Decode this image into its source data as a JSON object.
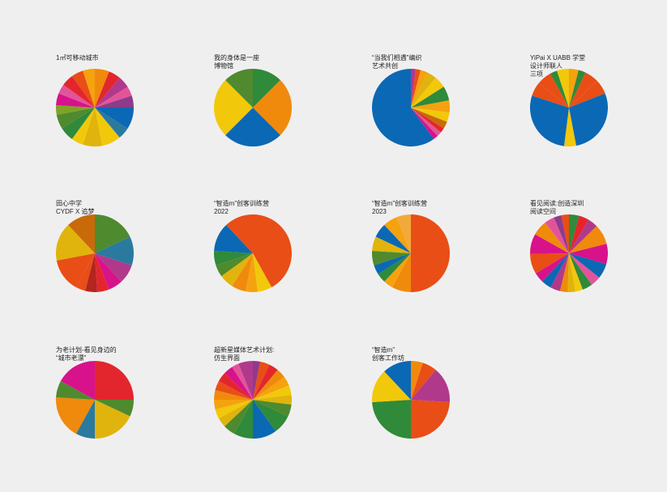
{
  "palette": {
    "red": "#e3262d",
    "orange_red": "#e84e16",
    "orange": "#f08a0c",
    "amber": "#f5a20f",
    "yellow": "#f2c80a",
    "mustard": "#e0b40c",
    "light_orange": "#f2a93b",
    "dark_orange": "#c86a0a",
    "blue": "#0b68b4",
    "teal": "#2a7aa0",
    "green": "#2f8a3a",
    "olive_green": "#4f8a2e",
    "lime": "#7ea325",
    "magenta": "#d8128a",
    "pink": "#e2549a",
    "purple": "#b1398c",
    "violet": "#8e3b8b",
    "dark_red": "#b4251f"
  },
  "chart_data": [
    {
      "type": "pie",
      "title": "1㎡可移动城市",
      "slices": [
        {
          "value": 6,
          "color": "orange"
        },
        {
          "value": 5,
          "color": "red"
        },
        {
          "value": 5,
          "color": "purple"
        },
        {
          "value": 4,
          "color": "pink"
        },
        {
          "value": 5,
          "color": "violet"
        },
        {
          "value": 9,
          "color": "blue"
        },
        {
          "value": 5,
          "color": "teal"
        },
        {
          "value": 8,
          "color": "yellow"
        },
        {
          "value": 8,
          "color": "mustard"
        },
        {
          "value": 5,
          "color": "yellow"
        },
        {
          "value": 6,
          "color": "green"
        },
        {
          "value": 6,
          "color": "olive_green"
        },
        {
          "value": 4,
          "color": "lime"
        },
        {
          "value": 5,
          "color": "magenta"
        },
        {
          "value": 4,
          "color": "pink"
        },
        {
          "value": 5,
          "color": "red"
        },
        {
          "value": 5,
          "color": "orange_red"
        },
        {
          "value": 5,
          "color": "amber"
        }
      ]
    },
    {
      "type": "pie",
      "title": "我的身体是一座\n博物馆",
      "slices": [
        {
          "value": 12.5,
          "color": "green"
        },
        {
          "value": 25,
          "color": "orange"
        },
        {
          "value": 25,
          "color": "blue"
        },
        {
          "value": 25,
          "color": "yellow"
        },
        {
          "value": 12.5,
          "color": "olive_green"
        }
      ]
    },
    {
      "type": "pie",
      "title": "“当我们相遇”编织\n艺术共创",
      "slices": [
        {
          "value": 2,
          "color": "purple"
        },
        {
          "value": 2,
          "color": "orange_red"
        },
        {
          "value": 3,
          "color": "amber"
        },
        {
          "value": 4,
          "color": "mustard"
        },
        {
          "value": 5,
          "color": "yellow"
        },
        {
          "value": 6,
          "color": "green"
        },
        {
          "value": 5,
          "color": "amber"
        },
        {
          "value": 4,
          "color": "yellow"
        },
        {
          "value": 3,
          "color": "dark_orange"
        },
        {
          "value": 2,
          "color": "red"
        },
        {
          "value": 2,
          "color": "pink"
        },
        {
          "value": 2,
          "color": "magenta"
        },
        {
          "value": 60,
          "color": "blue"
        }
      ]
    },
    {
      "type": "pie",
      "title": "YiPai X UABB 学堂\n设计师联人\n三项",
      "slices": [
        {
          "value": 4,
          "color": "amber"
        },
        {
          "value": 3,
          "color": "green"
        },
        {
          "value": 6,
          "color": "orange_red"
        },
        {
          "value": 6,
          "color": "orange_red"
        },
        {
          "value": 28,
          "color": "blue"
        },
        {
          "value": 5,
          "color": "yellow"
        },
        {
          "value": 28,
          "color": "blue"
        },
        {
          "value": 6,
          "color": "orange_red"
        },
        {
          "value": 6,
          "color": "orange_red"
        },
        {
          "value": 3,
          "color": "green"
        },
        {
          "value": 5,
          "color": "yellow"
        }
      ]
    },
    {
      "type": "pie",
      "title": "田心中学\nCYDF X 追梦",
      "slices": [
        {
          "value": 18,
          "color": "olive_green"
        },
        {
          "value": 12,
          "color": "teal"
        },
        {
          "value": 8,
          "color": "purple"
        },
        {
          "value": 6,
          "color": "magenta"
        },
        {
          "value": 5,
          "color": "red"
        },
        {
          "value": 5,
          "color": "dark_red"
        },
        {
          "value": 4,
          "color": "orange_red"
        },
        {
          "value": 14,
          "color": "orange_red"
        },
        {
          "value": 16,
          "color": "mustard"
        },
        {
          "value": 12,
          "color": "dark_orange"
        }
      ]
    },
    {
      "type": "pie",
      "title": "“智造m”创客训练营\n2022",
      "slices": [
        {
          "value": 42,
          "color": "orange_red"
        },
        {
          "value": 6,
          "color": "yellow"
        },
        {
          "value": 5,
          "color": "amber"
        },
        {
          "value": 6,
          "color": "orange"
        },
        {
          "value": 6,
          "color": "mustard"
        },
        {
          "value": 5,
          "color": "olive_green"
        },
        {
          "value": 6,
          "color": "green"
        },
        {
          "value": 12,
          "color": "blue"
        },
        {
          "value": 12,
          "color": "orange_red"
        }
      ]
    },
    {
      "type": "pie",
      "title": "“智造m”创客训练营\n2023",
      "slices": [
        {
          "value": 50,
          "color": "orange_red"
        },
        {
          "value": 8,
          "color": "orange"
        },
        {
          "value": 4,
          "color": "amber"
        },
        {
          "value": 4,
          "color": "green"
        },
        {
          "value": 4,
          "color": "blue"
        },
        {
          "value": 6,
          "color": "olive_green"
        },
        {
          "value": 6,
          "color": "mustard"
        },
        {
          "value": 6,
          "color": "blue"
        },
        {
          "value": 6,
          "color": "amber"
        },
        {
          "value": 6,
          "color": "light_orange"
        }
      ]
    },
    {
      "type": "pie",
      "title": "看见阅读:创造深圳\n阅读空间",
      "slices": [
        {
          "value": 4,
          "color": "green"
        },
        {
          "value": 4,
          "color": "red"
        },
        {
          "value": 4,
          "color": "purple"
        },
        {
          "value": 8,
          "color": "orange"
        },
        {
          "value": 8,
          "color": "magenta"
        },
        {
          "value": 6,
          "color": "blue"
        },
        {
          "value": 4,
          "color": "pink"
        },
        {
          "value": 4,
          "color": "green"
        },
        {
          "value": 3,
          "color": "yellow"
        },
        {
          "value": 3,
          "color": "mustard"
        },
        {
          "value": 3,
          "color": "orange"
        },
        {
          "value": 4,
          "color": "purple"
        },
        {
          "value": 4,
          "color": "blue"
        },
        {
          "value": 4,
          "color": "magenta"
        },
        {
          "value": 8,
          "color": "orange_red"
        },
        {
          "value": 8,
          "color": "magenta"
        },
        {
          "value": 6,
          "color": "orange"
        },
        {
          "value": 4,
          "color": "pink"
        },
        {
          "value": 3,
          "color": "violet"
        },
        {
          "value": 3,
          "color": "orange_red"
        }
      ]
    },
    {
      "type": "pie",
      "title": "为老计划-看见身边的\n“城市老漂”",
      "slices": [
        {
          "value": 25,
          "color": "red"
        },
        {
          "value": 7,
          "color": "olive_green"
        },
        {
          "value": 18,
          "color": "mustard"
        },
        {
          "value": 8,
          "color": "teal"
        },
        {
          "value": 18,
          "color": "orange"
        },
        {
          "value": 7,
          "color": "olive_green"
        },
        {
          "value": 17,
          "color": "magenta"
        }
      ]
    },
    {
      "type": "pie",
      "title": "超新星媒体艺术计划:\n仿生界面",
      "slices": [
        {
          "value": 3,
          "color": "violet"
        },
        {
          "value": 4,
          "color": "orange_red"
        },
        {
          "value": 4,
          "color": "red"
        },
        {
          "value": 4,
          "color": "orange"
        },
        {
          "value": 4,
          "color": "amber"
        },
        {
          "value": 4,
          "color": "yellow"
        },
        {
          "value": 4,
          "color": "mustard"
        },
        {
          "value": 5,
          "color": "olive_green"
        },
        {
          "value": 8,
          "color": "green"
        },
        {
          "value": 10,
          "color": "blue"
        },
        {
          "value": 8,
          "color": "green"
        },
        {
          "value": 5,
          "color": "olive_green"
        },
        {
          "value": 4,
          "color": "mustard"
        },
        {
          "value": 4,
          "color": "yellow"
        },
        {
          "value": 4,
          "color": "amber"
        },
        {
          "value": 4,
          "color": "orange"
        },
        {
          "value": 4,
          "color": "orange_red"
        },
        {
          "value": 4,
          "color": "red"
        },
        {
          "value": 4,
          "color": "magenta"
        },
        {
          "value": 3,
          "color": "pink"
        },
        {
          "value": 6,
          "color": "purple"
        }
      ]
    },
    {
      "type": "pie",
      "title": "“智造m”\n创客工作坊",
      "slices": [
        {
          "value": 5,
          "color": "orange"
        },
        {
          "value": 6,
          "color": "orange_red"
        },
        {
          "value": 15,
          "color": "purple"
        },
        {
          "value": 24,
          "color": "orange_red"
        },
        {
          "value": 24,
          "color": "green"
        },
        {
          "value": 14,
          "color": "yellow"
        },
        {
          "value": 12,
          "color": "blue"
        }
      ]
    }
  ]
}
